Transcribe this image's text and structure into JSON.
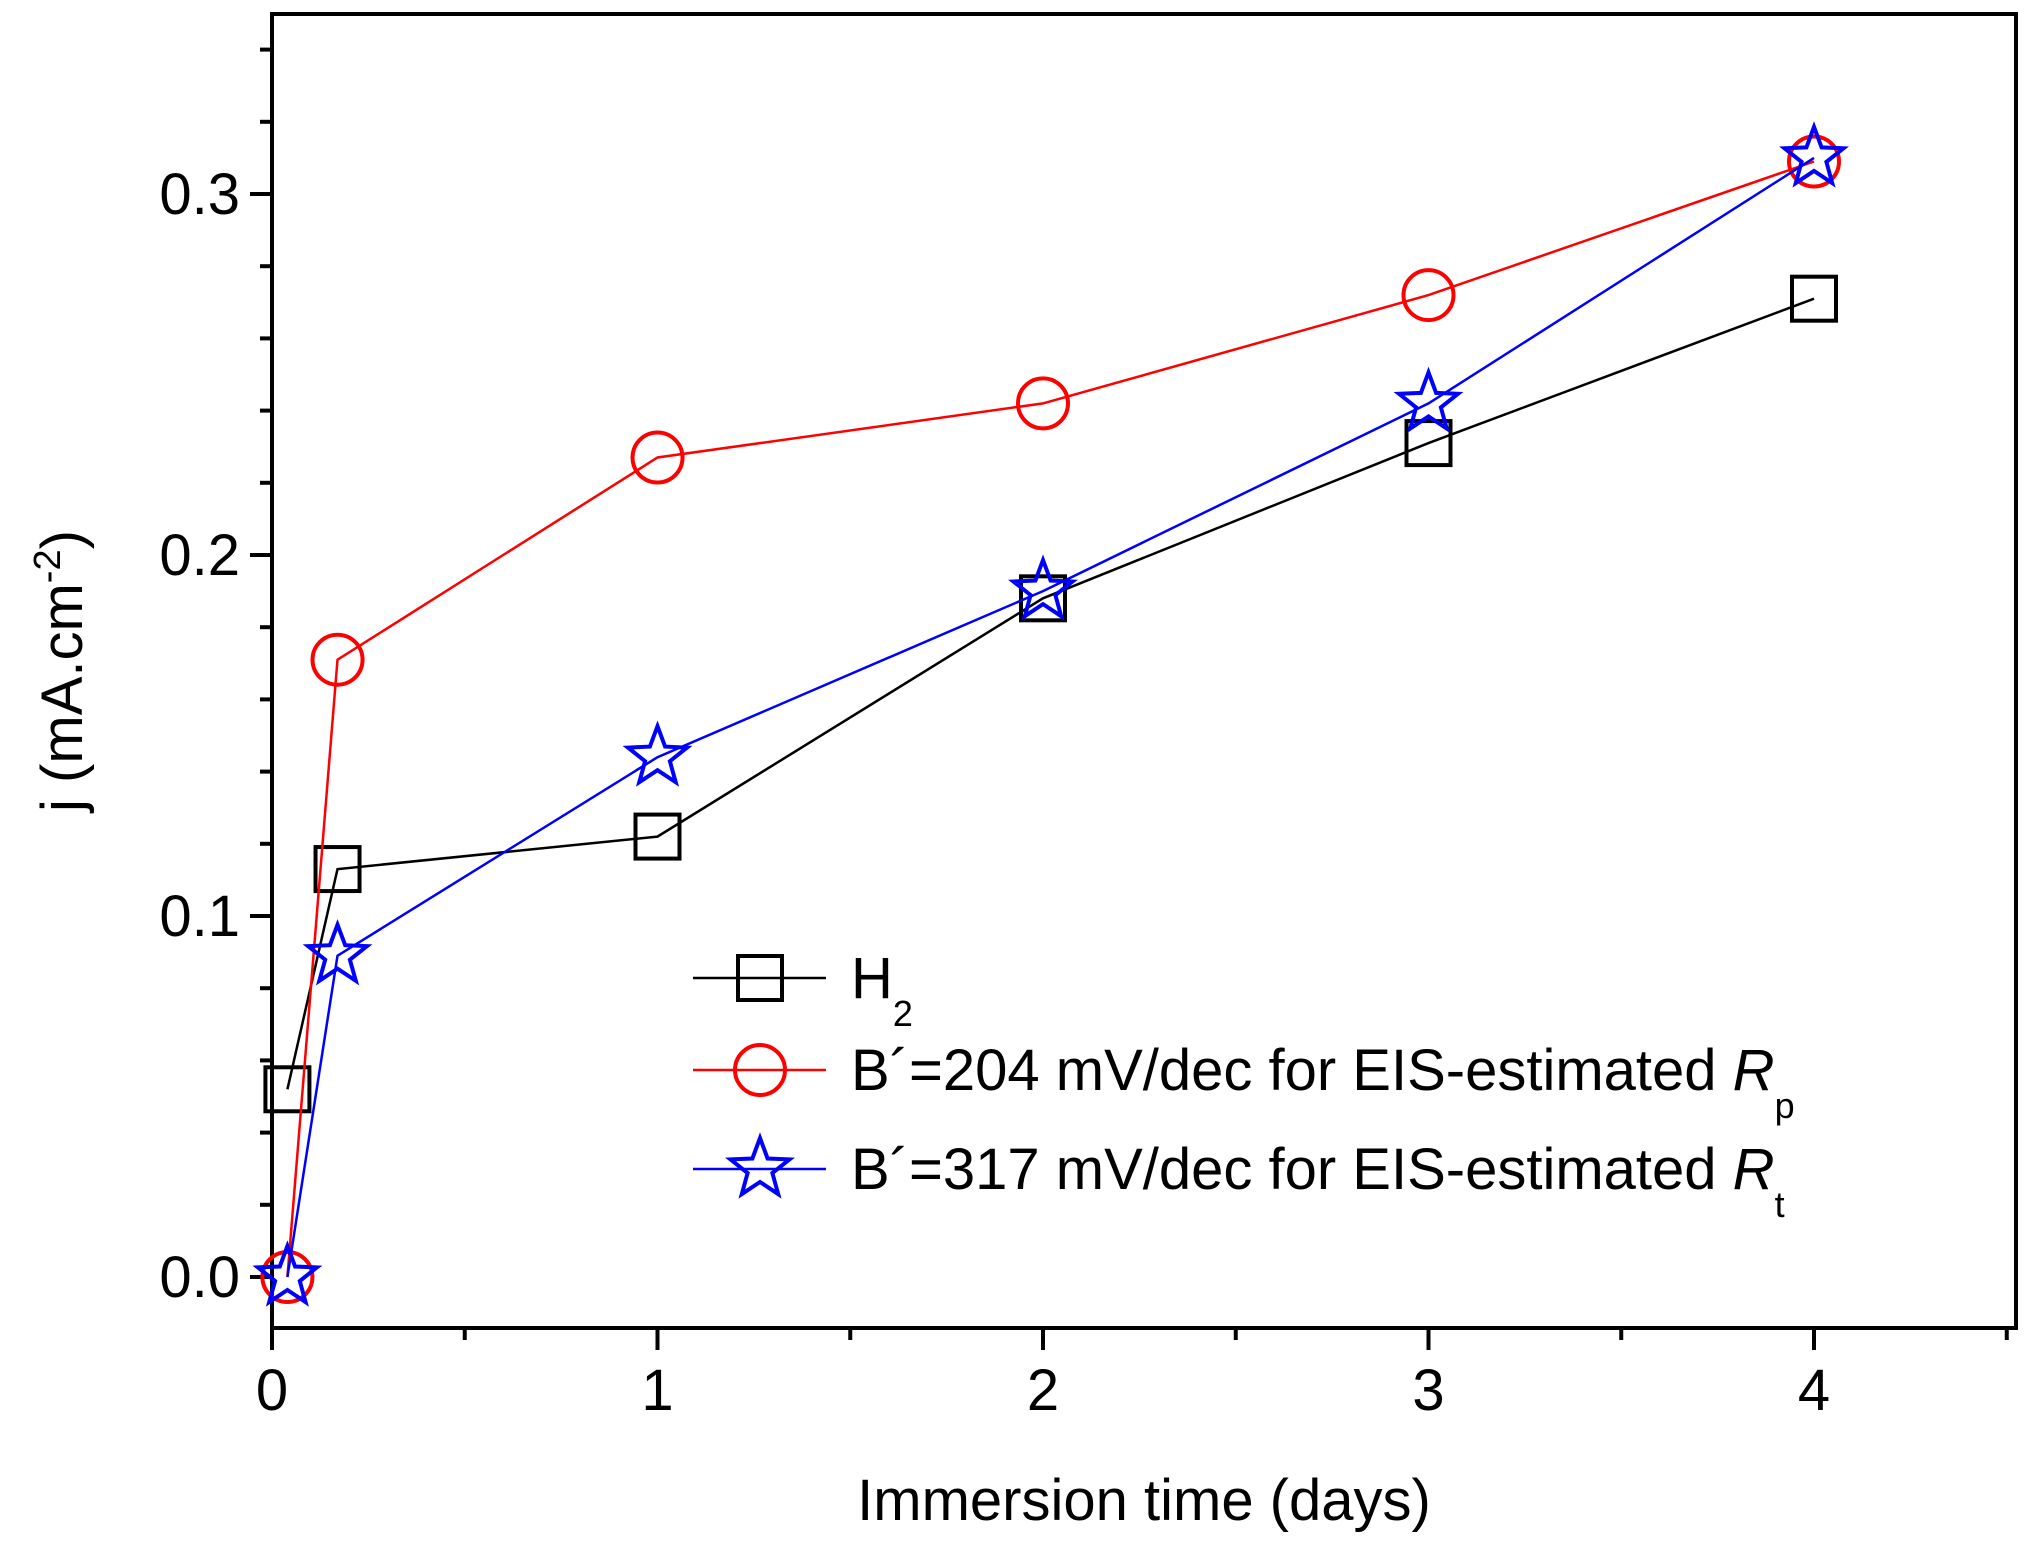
{
  "chart_data": {
    "type": "line",
    "title": "",
    "xlabel": "Immersion time (days)",
    "ylabel": {
      "main": "j (mA.cm",
      "exponent": "-2",
      "close": ")"
    },
    "xlim": [
      0,
      4.5
    ],
    "ylim": [
      -0.011,
      0.35
    ],
    "x_ticks": [
      {
        "value": 0,
        "label": "0"
      },
      {
        "value": 1,
        "label": "1"
      },
      {
        "value": 2,
        "label": "2"
      },
      {
        "value": 3,
        "label": "3"
      },
      {
        "value": 4,
        "label": "4"
      }
    ],
    "y_ticks": [
      {
        "value": 0.0,
        "label": "0.0"
      },
      {
        "value": 0.1,
        "label": "0.1"
      },
      {
        "value": 0.2,
        "label": "0.2"
      },
      {
        "value": 0.3,
        "label": "0.3"
      }
    ],
    "grid": false,
    "legend_position": "bottom-right",
    "series": [
      {
        "name": "H2",
        "legend": {
          "text": "H",
          "subscript": "2",
          "italic": ""
        },
        "color": "#000000",
        "marker": "square",
        "x": [
          0.04,
          0.17,
          1,
          2,
          3,
          4
        ],
        "y": [
          0.052,
          0.113,
          0.122,
          0.188,
          0.231,
          0.271
        ]
      },
      {
        "name": "B´=204 mV/dec for EIS-estimated Rp",
        "legend": {
          "text": "B´=204 mV/dec for EIS-estimated ",
          "italic": "R",
          "subscript": "p"
        },
        "color": "#ff0000",
        "marker": "circle",
        "x": [
          0.04,
          0.17,
          1,
          2,
          3,
          4
        ],
        "y": [
          0.0,
          0.171,
          0.227,
          0.242,
          0.272,
          0.309
        ]
      },
      {
        "name": "B´=317 mV/dec for EIS-estimated Rt",
        "legend": {
          "text": "B´=317 mV/dec for EIS-estimated ",
          "italic": "R",
          "subscript": "t"
        },
        "color": "#0000ff",
        "marker": "star",
        "x": [
          0.04,
          0.17,
          1,
          2,
          3,
          4
        ],
        "y": [
          0.0,
          0.089,
          0.144,
          0.19,
          0.242,
          0.31
        ]
      }
    ]
  }
}
